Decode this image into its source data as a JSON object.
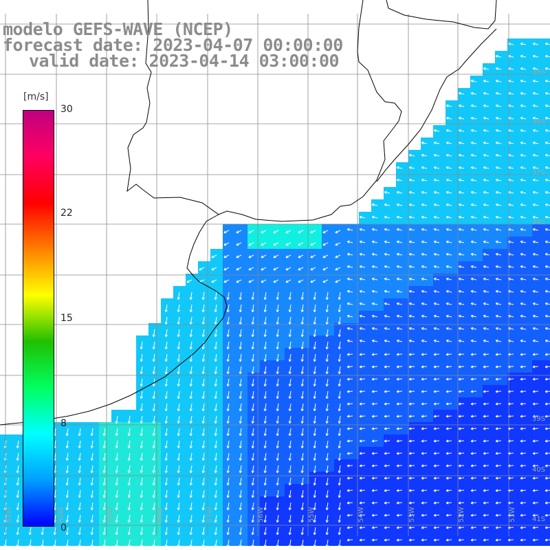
{
  "title": {
    "model": "modelo GEFS-WAVE (NCEP)",
    "forecast": "forecast date: 2023-04-07 00:00:00",
    "valid": "valid date: 2023-04-14 03:00:00"
  },
  "colorbar": {
    "unit": "[m/s]",
    "ticks": [
      "30",
      "22",
      "15",
      "8",
      "0"
    ],
    "colors": [
      "#0000ff",
      "#00a0ff",
      "#00ffff",
      "#00ff60",
      "#20c000",
      "#ffff00",
      "#ff8000",
      "#ff0000",
      "#ff0060",
      "#c00080"
    ]
  },
  "axes": {
    "lon_labels": [
      "61W",
      "60W",
      "59W",
      "58W",
      "57W",
      "56W",
      "55W",
      "54W",
      "53W",
      "52W",
      "51W"
    ],
    "lat_labels": [
      "35S",
      "36S",
      "37S",
      "38S",
      "39S",
      "40S",
      "41S"
    ]
  },
  "legend_colors": {
    "land": "#ffffff",
    "grid": "#888888",
    "coast": "#000000",
    "arrow": "#ffffff"
  }
}
